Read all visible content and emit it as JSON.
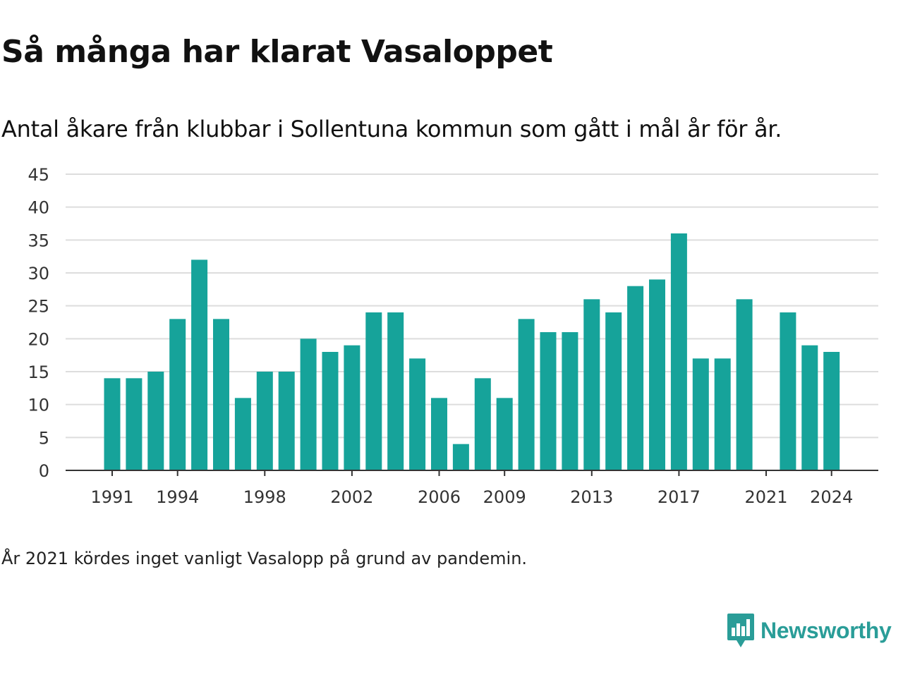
{
  "title": "Så många har klarat Vasaloppet",
  "subtitle": "Antal åkare från klubbar i Sollentuna kommun som gått i mål år för år.",
  "footnote": "År 2021 kördes inget vanligt Vasalopp på grund av pandemin.",
  "brand": {
    "name": "Newsworthy",
    "icon": "newsworthy-logo-icon",
    "color": "#2a9d98"
  },
  "colors": {
    "bar": "#16a39a",
    "grid": "#dddddd",
    "axis": "#333333"
  },
  "chart_data": {
    "type": "bar",
    "categories": [
      1991,
      1992,
      1993,
      1994,
      1995,
      1996,
      1997,
      1998,
      1999,
      2000,
      2001,
      2002,
      2003,
      2004,
      2005,
      2006,
      2007,
      2008,
      2009,
      2010,
      2011,
      2012,
      2013,
      2014,
      2015,
      2016,
      2017,
      2018,
      2019,
      2020,
      2021,
      2022,
      2023,
      2024
    ],
    "values": [
      14,
      14,
      15,
      23,
      32,
      23,
      11,
      15,
      15,
      20,
      18,
      19,
      24,
      24,
      17,
      11,
      4,
      14,
      11,
      23,
      21,
      21,
      26,
      24,
      28,
      29,
      36,
      17,
      17,
      26,
      0,
      24,
      19,
      18
    ],
    "xticks": [
      1991,
      1994,
      1998,
      2002,
      2006,
      2009,
      2013,
      2017,
      2021,
      2024
    ],
    "yticks": [
      0,
      5,
      10,
      15,
      20,
      25,
      30,
      35,
      40,
      45
    ],
    "ylim": [
      0,
      45
    ],
    "grid": true,
    "legend": "none"
  }
}
